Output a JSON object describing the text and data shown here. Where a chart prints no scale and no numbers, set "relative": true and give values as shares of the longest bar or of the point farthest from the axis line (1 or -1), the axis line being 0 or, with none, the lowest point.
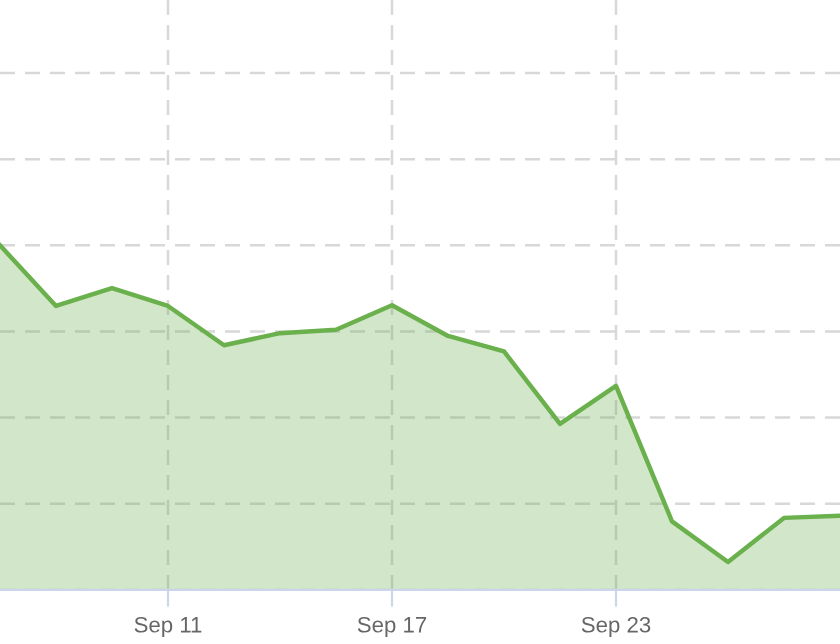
{
  "chart_data": {
    "type": "area",
    "relative": true,
    "categories": [
      null,
      null,
      null,
      "Sep 11",
      null,
      null,
      null,
      "Sep 17",
      null,
      null,
      null,
      "Sep 23",
      null,
      null,
      null,
      null
    ],
    "series": [
      {
        "color": "#6ab04c",
        "values": [
          1.0,
          0.824,
          0.876,
          0.824,
          0.71,
          0.745,
          0.755,
          0.826,
          0.737,
          0.692,
          0.482,
          0.592,
          0.199,
          0.081,
          0.209,
          0.215
        ]
      }
    ],
    "grid": true,
    "marker": "none",
    "line_style": "solid"
  }
}
